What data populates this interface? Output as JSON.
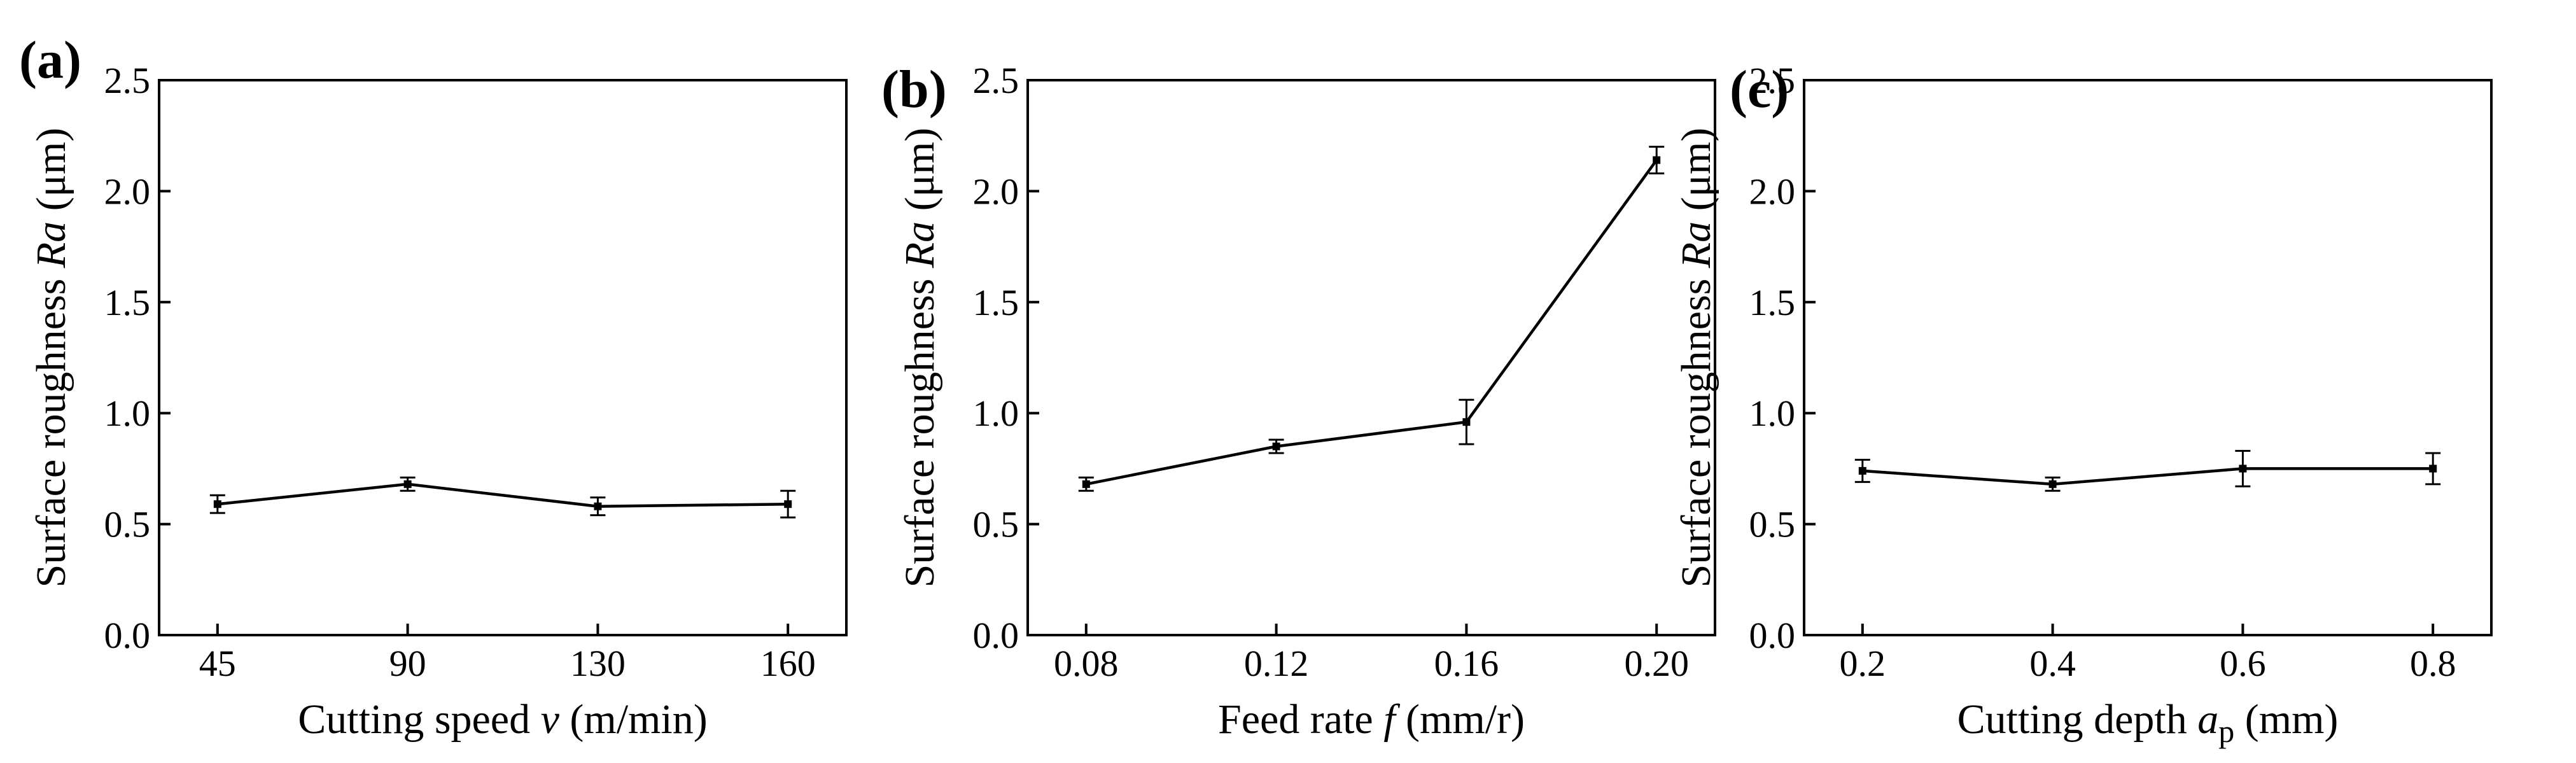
{
  "chart_data": [
    {
      "type": "line",
      "panel_label": "(a)",
      "categories": [
        "45",
        "90",
        "130",
        "160"
      ],
      "x": [
        45,
        90,
        130,
        160
      ],
      "values": [
        0.59,
        0.68,
        0.58,
        0.59
      ],
      "errors": [
        0.04,
        0.03,
        0.04,
        0.06
      ],
      "xlabel": "Cutting speed  v (m/min)",
      "xlabel_parts": {
        "text": "Cutting speed  ",
        "var": "v",
        "unit": " (m/min)"
      },
      "ylabel": "Surface roughness  Ra (μm)",
      "ylabel_parts": {
        "text": "Surface roughness  ",
        "var": "Ra",
        "unit": " (μm)"
      },
      "ylim": [
        0,
        2.5
      ],
      "yticks": [
        "0.0",
        "0.5",
        "1.0",
        "1.5",
        "2.0",
        "2.5"
      ],
      "grid": false
    },
    {
      "type": "line",
      "panel_label": "(b)",
      "categories": [
        "0.08",
        "0.12",
        "0.16",
        "0.20"
      ],
      "x": [
        0.08,
        0.12,
        0.16,
        0.2
      ],
      "values": [
        0.68,
        0.85,
        0.96,
        2.14
      ],
      "errors": [
        0.03,
        0.03,
        0.1,
        0.06
      ],
      "xlabel": "Feed rate f (mm/r)",
      "xlabel_parts": {
        "text": "Feed rate ",
        "var": "f",
        "unit": " (mm/r)"
      },
      "ylabel": "Surface roughness Ra (μm)",
      "ylabel_parts": {
        "text": "Surface roughness ",
        "var": "Ra",
        "unit": " (μm)"
      },
      "ylim": [
        0,
        2.5
      ],
      "yticks": [
        "0.0",
        "0.5",
        "1.0",
        "1.5",
        "2.0",
        "2.5"
      ],
      "grid": false
    },
    {
      "type": "line",
      "panel_label": "(c)",
      "categories": [
        "0.2",
        "0.4",
        "0.6",
        "0.8"
      ],
      "x": [
        0.2,
        0.4,
        0.6,
        0.8
      ],
      "values": [
        0.74,
        0.68,
        0.75,
        0.75
      ],
      "errors": [
        0.05,
        0.03,
        0.08,
        0.07
      ],
      "xlabel": "Cutting depth ap (mm)",
      "xlabel_parts": {
        "text": "Cutting depth ",
        "var": "a",
        "sub": "p",
        "unit": " (mm)"
      },
      "ylabel": "Surface roughness Ra (μm)",
      "ylabel_parts": {
        "text": "Surface roughness ",
        "var": "Ra",
        "unit": " (μm)"
      },
      "ylim": [
        0,
        2.5
      ],
      "yticks": [
        "0.0",
        "0.5",
        "1.0",
        "1.5",
        "2.0",
        "2.5"
      ],
      "grid": false
    }
  ]
}
